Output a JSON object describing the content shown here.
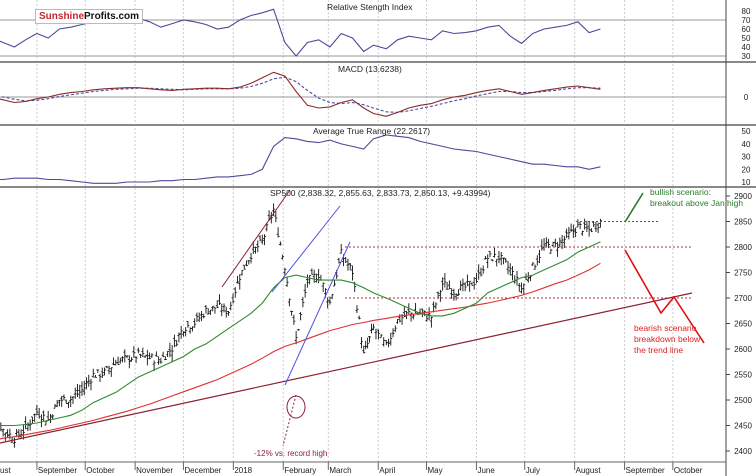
{
  "logo": {
    "part1": "Sunshine",
    "part2": "Profits.com"
  },
  "colors": {
    "rsi": "#4a4a9a",
    "macd": "#8b2a2a",
    "signal": "#4a4aa0",
    "atr": "#4a4a9a",
    "sma50": "#2e8b2e",
    "sma200": "#e03030",
    "trend": "#8b2030",
    "bullish": "#2a7a2a",
    "bearish": "#e01010",
    "channel": "#5050e0"
  },
  "chart_data": [
    {
      "type": "line",
      "title": "Relative Stength Index",
      "yticks": [
        80,
        70,
        60,
        50,
        40,
        30
      ],
      "reference_lines": [
        70,
        30
      ],
      "values": [
        50,
        45,
        40,
        48,
        55,
        50,
        60,
        62,
        65,
        68,
        67,
        70,
        70,
        72,
        68,
        62,
        66,
        70,
        68,
        65,
        60,
        62,
        70,
        75,
        78,
        82,
        45,
        30,
        45,
        48,
        40,
        55,
        50,
        35,
        42,
        38,
        48,
        52,
        50,
        48,
        58,
        55,
        56,
        58,
        62,
        64,
        52,
        44,
        55,
        60,
        62,
        64,
        68,
        56,
        60
      ]
    },
    {
      "type": "line",
      "title": "MACD (13.6238)",
      "yticks": [
        0
      ],
      "series": [
        {
          "values": [
            0,
            -5,
            -10,
            -8,
            -3,
            0,
            5,
            8,
            10,
            13,
            15,
            16,
            17,
            17,
            15,
            13,
            12,
            14,
            15,
            16,
            16,
            15,
            18,
            25,
            35,
            45,
            38,
            10,
            -15,
            -20,
            -18,
            -10,
            -5,
            -20,
            -30,
            -35,
            -28,
            -20,
            -15,
            -12,
            -5,
            0,
            3,
            8,
            12,
            15,
            10,
            5,
            8,
            12,
            15,
            18,
            20,
            17,
            14
          ]
        },
        {
          "values": [
            2,
            0,
            -4,
            -7,
            -6,
            -3,
            1,
            4,
            7,
            10,
            12,
            14,
            15,
            16,
            16,
            15,
            14,
            13,
            14,
            15,
            15,
            15,
            16,
            19,
            25,
            33,
            36,
            28,
            12,
            -2,
            -10,
            -12,
            -10,
            -14,
            -20,
            -27,
            -28,
            -25,
            -21,
            -17,
            -12,
            -7,
            -3,
            2,
            6,
            10,
            10,
            8,
            8,
            10,
            12,
            15,
            17,
            17,
            16
          ],
          "style": "dashed"
        }
      ]
    },
    {
      "type": "line",
      "title": "Average True Range (22.2617)",
      "yticks": [
        50,
        40,
        30,
        20,
        10
      ],
      "values": [
        12,
        12,
        13,
        13,
        13,
        12,
        12,
        11,
        10,
        9,
        9,
        9,
        10,
        10,
        10,
        11,
        11,
        12,
        12,
        13,
        14,
        14,
        15,
        16,
        20,
        38,
        45,
        44,
        42,
        41,
        43,
        40,
        38,
        36,
        44,
        47,
        46,
        45,
        42,
        40,
        38,
        36,
        35,
        34,
        32,
        30,
        28,
        26,
        24,
        24,
        23,
        22,
        22,
        20,
        22
      ]
    },
    {
      "type": "bar",
      "title": "SP500 (2,838.32, 2,855.63, 2,833.73, 2,850.13, +9.43994)",
      "ylim": [
        2375,
        2920
      ],
      "yticks": [
        2900,
        2850,
        2800,
        2750,
        2700,
        2650,
        2600,
        2550,
        2500,
        2450,
        2400
      ],
      "xticks": [
        "ust",
        "September",
        "October",
        "November",
        "December",
        "2018",
        "February",
        "March",
        "April",
        "May",
        "June",
        "July",
        "August",
        "September",
        "October"
      ],
      "xtick_dates": [
        "2017-08-01",
        "2017-09-01",
        "2017-10-01",
        "2017-11-01",
        "2017-12-01",
        "2018-01-01",
        "2018-02-01",
        "2018-03-01",
        "2018-04-01",
        "2018-05-01",
        "2018-06-01",
        "2018-07-01",
        "2018-08-01",
        "2018-09-01",
        "2018-10-01"
      ],
      "dates": [
        "2017-08-04",
        "2017-08-11",
        "2017-08-18",
        "2017-08-25",
        "2017-09-01",
        "2017-09-08",
        "2017-09-15",
        "2017-09-22",
        "2017-09-29",
        "2017-10-06",
        "2017-10-13",
        "2017-10-20",
        "2017-10-27",
        "2017-11-03",
        "2017-11-10",
        "2017-11-17",
        "2017-11-24",
        "2017-12-01",
        "2017-12-08",
        "2017-12-15",
        "2017-12-22",
        "2017-12-29",
        "2018-01-05",
        "2018-01-12",
        "2018-01-19",
        "2018-01-26",
        "2018-02-02",
        "2018-02-09",
        "2018-02-16",
        "2018-02-23",
        "2018-03-02",
        "2018-03-09",
        "2018-03-16",
        "2018-03-23",
        "2018-03-29",
        "2018-04-06",
        "2018-04-13",
        "2018-04-20",
        "2018-04-27",
        "2018-05-04",
        "2018-05-11",
        "2018-05-18",
        "2018-05-25",
        "2018-06-01",
        "2018-06-08",
        "2018-06-15",
        "2018-06-22",
        "2018-06-29",
        "2018-07-06",
        "2018-07-13",
        "2018-07-20",
        "2018-07-27",
        "2018-08-03",
        "2018-08-10",
        "2018-08-17"
      ],
      "close": [
        2476,
        2441,
        2425,
        2444,
        2477,
        2461,
        2500,
        2502,
        2519,
        2549,
        2553,
        2575,
        2581,
        2588,
        2582,
        2579,
        2602,
        2642,
        2652,
        2675,
        2683,
        2674,
        2743,
        2786,
        2810,
        2873,
        2762,
        2620,
        2732,
        2747,
        2691,
        2786,
        2752,
        2588,
        2641,
        2604,
        2656,
        2670,
        2670,
        2663,
        2728,
        2713,
        2721,
        2735,
        2779,
        2780,
        2755,
        2718,
        2760,
        2801,
        2802,
        2819,
        2840,
        2833,
        2850
      ],
      "sma50": [
        2450,
        2450,
        2450,
        2452,
        2455,
        2460,
        2465,
        2470,
        2480,
        2495,
        2505,
        2515,
        2530,
        2545,
        2555,
        2565,
        2575,
        2585,
        2600,
        2610,
        2625,
        2640,
        2655,
        2670,
        2690,
        2720,
        2740,
        2745,
        2740,
        2735,
        2735,
        2735,
        2730,
        2720,
        2710,
        2700,
        2690,
        2680,
        2670,
        2665,
        2665,
        2670,
        2680,
        2690,
        2710,
        2720,
        2730,
        2740,
        2745,
        2755,
        2765,
        2775,
        2790,
        2800,
        2810
      ],
      "sma200": [
        2420,
        2425,
        2428,
        2432,
        2436,
        2440,
        2445,
        2450,
        2455,
        2460,
        2466,
        2472,
        2478,
        2485,
        2492,
        2500,
        2508,
        2516,
        2524,
        2532,
        2540,
        2550,
        2560,
        2570,
        2582,
        2595,
        2605,
        2612,
        2620,
        2628,
        2636,
        2642,
        2648,
        2652,
        2656,
        2660,
        2664,
        2667,
        2670,
        2673,
        2676,
        2679,
        2682,
        2686,
        2690,
        2695,
        2700,
        2705,
        2712,
        2720,
        2728,
        2735,
        2745,
        2755,
        2768
      ],
      "horizontal_levels": [
        2850,
        2800,
        2700
      ],
      "annotations": {
        "bullish": [
          "bullish scenario:",
          "breakout above Jan high"
        ],
        "bearish": [
          "bearish scenario",
          "breakdown below",
          "the trend line"
        ],
        "record": "-12% vs. record high"
      }
    }
  ]
}
